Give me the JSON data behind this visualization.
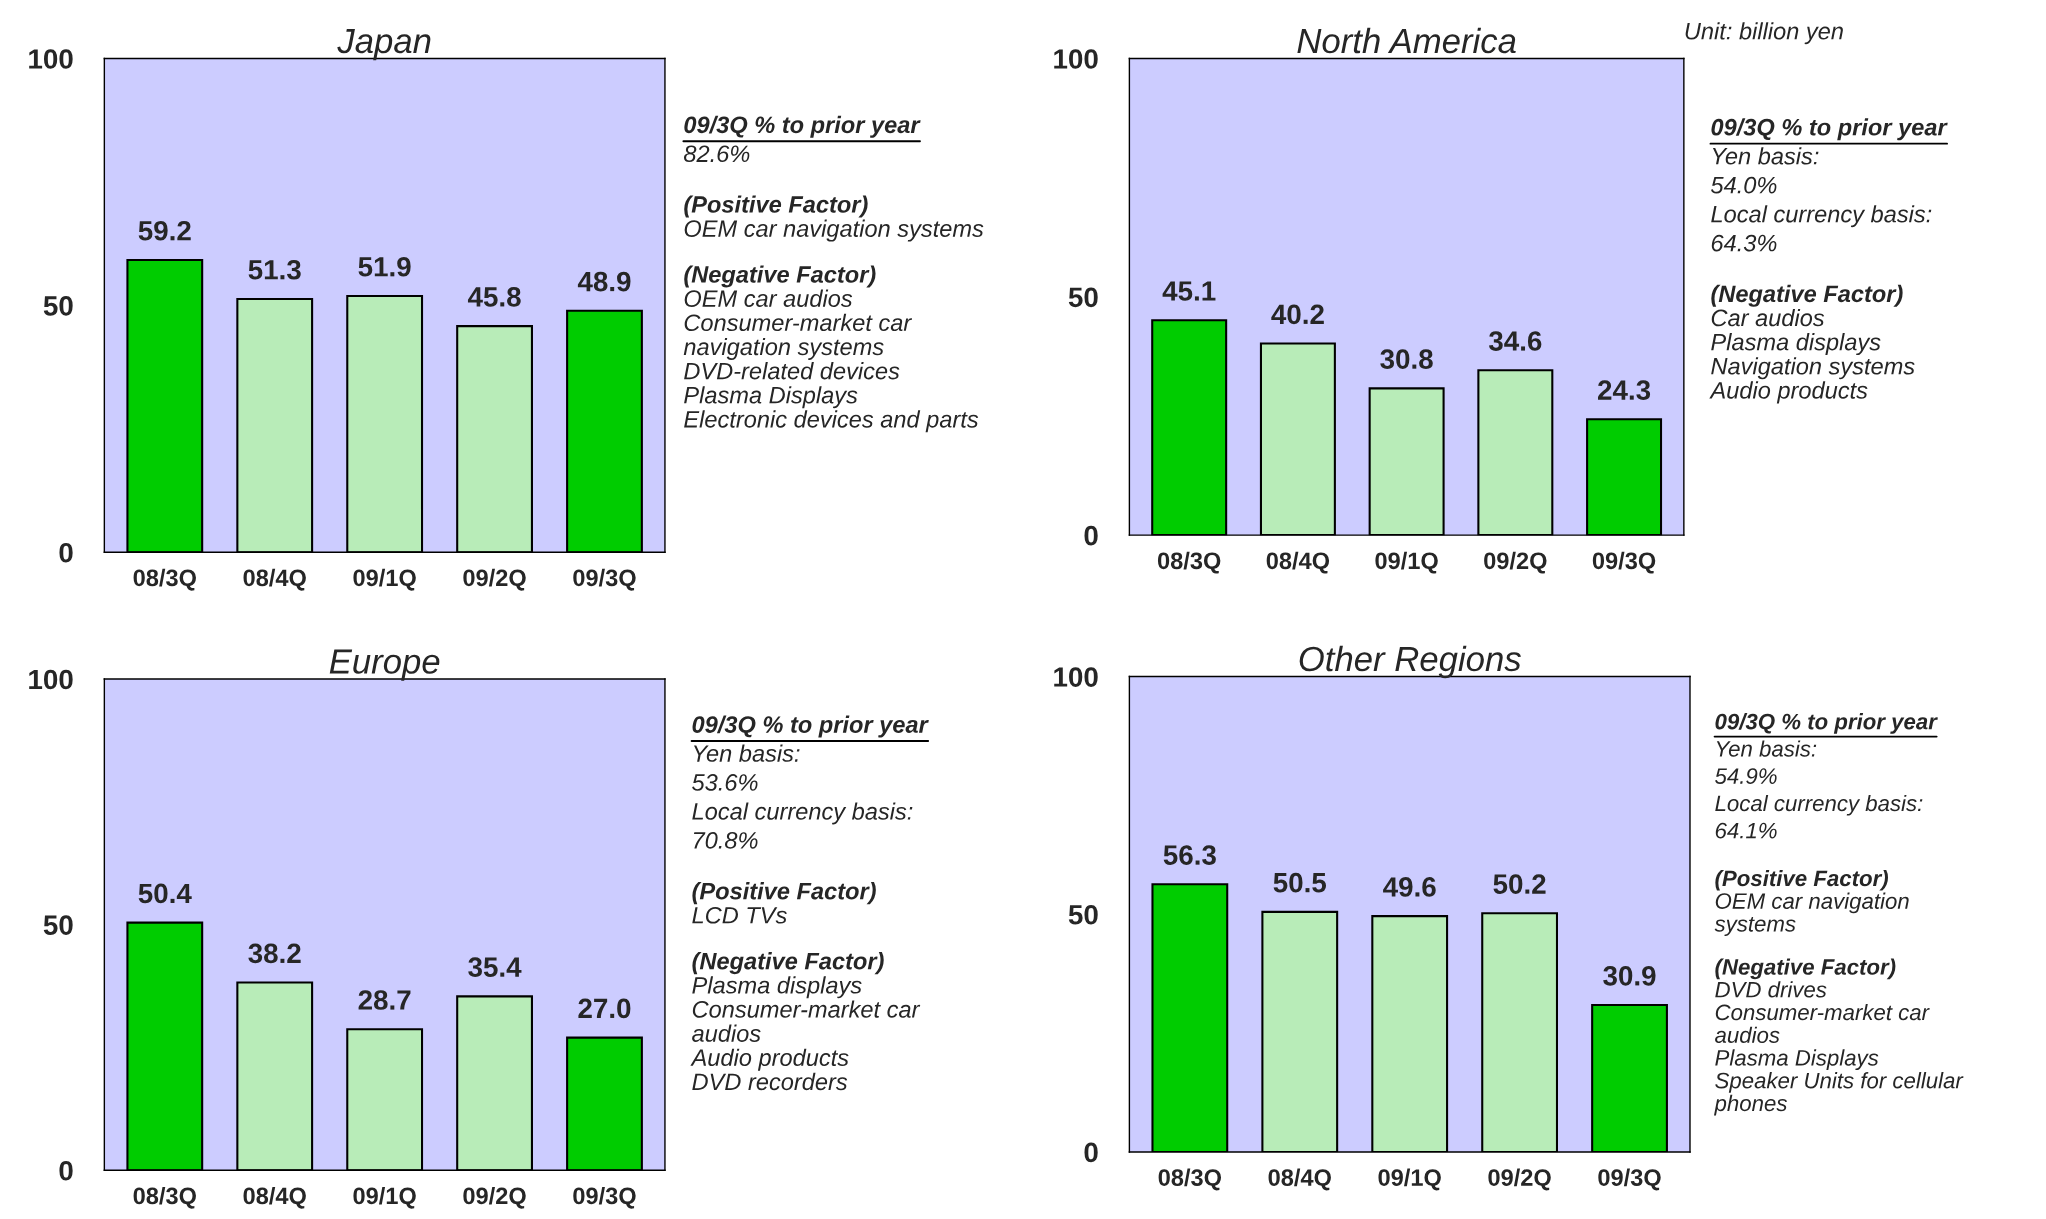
{
  "chart_data": [
    {
      "type": "bar",
      "title": "Japan",
      "categories": [
        "08/3Q",
        "08/4Q",
        "09/1Q",
        "09/2Q",
        "09/3Q"
      ],
      "values": [
        59.2,
        51.3,
        51.9,
        45.8,
        48.9
      ],
      "colors": [
        "#00cc00",
        "#b8ecb8",
        "#b8ecb8",
        "#b8ecb8",
        "#00cc00"
      ],
      "ylim": [
        0,
        100
      ],
      "yticks": [
        0,
        50,
        100
      ],
      "data_labels": true,
      "grid": false,
      "legend": false,
      "annotations": [
        "09/3Q % to prior year\n82.6%",
        "(Positive Factor)\nOEM car navigation systems",
        "(Negative Factor)\nOEM car audios\nConsumer-market car\nnavigation systems\nDVD-related devices\nPlasma Displays\nElectronic devices and parts"
      ]
    },
    {
      "type": "bar",
      "title": "North America",
      "subtitle": "Unit: billion yen",
      "categories": [
        "08/3Q",
        "08/4Q",
        "09/1Q",
        "09/2Q",
        "09/3Q"
      ],
      "values": [
        45.1,
        40.2,
        30.8,
        34.6,
        24.3
      ],
      "colors": [
        "#00cc00",
        "#b8ecb8",
        "#b8ecb8",
        "#b8ecb8",
        "#00cc00"
      ],
      "ylim": [
        0,
        100
      ],
      "yticks": [
        0,
        50,
        100
      ],
      "data_labels": true,
      "grid": false,
      "legend": false,
      "annotations": [
        "09/3Q % to prior year\nYen basis:\n54.0%\nLocal currency basis:\n64.3%",
        "(Negative Factor)\nCar audios\nPlasma displays\nNavigation systems\nAudio products"
      ]
    },
    {
      "type": "bar",
      "title": "Europe",
      "categories": [
        "08/3Q",
        "08/4Q",
        "09/1Q",
        "09/2Q",
        "09/3Q"
      ],
      "values": [
        50.4,
        38.2,
        28.7,
        35.4,
        27.0
      ],
      "colors": [
        "#00cc00",
        "#b8ecb8",
        "#b8ecb8",
        "#b8ecb8",
        "#00cc00"
      ],
      "ylim": [
        0,
        100
      ],
      "yticks": [
        0,
        50,
        100
      ],
      "grid": false,
      "legend": false,
      "value_labels": [
        "50.4",
        "38.2",
        "28.7",
        "35.4",
        "27.0"
      ],
      "annotations": [
        "09/3Q % to prior year\nYen basis:\n53.6%\nLocal currency basis:\n70.8%",
        "(Positive Factor)\nLCD TVs",
        "(Negative Factor)\nPlasma displays\nConsumer-market car\naudios\nAudio products\nDVD recorders"
      ]
    },
    {
      "type": "bar",
      "title": "Other Regions",
      "categories": [
        "08/3Q",
        "08/4Q",
        "09/1Q",
        "09/2Q",
        "09/3Q"
      ],
      "values": [
        56.3,
        50.5,
        49.6,
        50.2,
        30.9
      ],
      "colors": [
        "#00cc00",
        "#b8ecb8",
        "#b8ecb8",
        "#b8ecb8",
        "#00cc00"
      ],
      "ylim": [
        0,
        100
      ],
      "yticks": [
        0,
        50,
        100
      ],
      "data_labels": true,
      "grid": false,
      "legend": false,
      "annotations": [
        "09/3Q % to prior year\nYen basis:\n54.9%\nLocal currency basis:\n64.1%",
        "(Positive Factor)\nOEM car navigation\nsystems",
        "(Negative Factor)\nDVD drives\nConsumer-market car\naudios\nPlasma Displays\nSpeaker Units for cellular\nphones"
      ]
    }
  ]
}
